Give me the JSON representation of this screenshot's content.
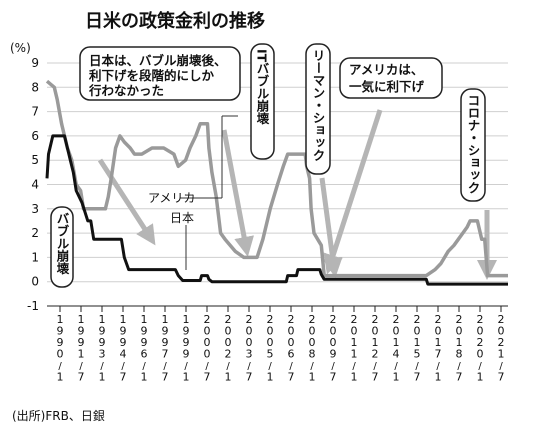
{
  "chart_data": {
    "type": "line",
    "title": "日米の政策金利の推移",
    "ylabel": "(%)",
    "ylim": [
      -1,
      9
    ],
    "yticks": [
      -1,
      0,
      1,
      2,
      3,
      4,
      5,
      6,
      7,
      8,
      9
    ],
    "grid": true,
    "xlim": [
      1990.0,
      2021.6
    ],
    "xtick_labels": [
      {
        "x": 1990.5,
        "label": "1990/1"
      },
      {
        "x": 1992.0,
        "label": "1991/7"
      },
      {
        "x": 1993.5,
        "label": "1993/1"
      },
      {
        "x": 1995.0,
        "label": "1994/7"
      },
      {
        "x": 1996.5,
        "label": "1996/1"
      },
      {
        "x": 1998.0,
        "label": "1997/7"
      },
      {
        "x": 1999.5,
        "label": "1999/1"
      },
      {
        "x": 2001.0,
        "label": "2000/7"
      },
      {
        "x": 2002.5,
        "label": "2002/1"
      },
      {
        "x": 2004.0,
        "label": "2003/7"
      },
      {
        "x": 2005.5,
        "label": "2005/1"
      },
      {
        "x": 2007.0,
        "label": "2006/7"
      },
      {
        "x": 2008.5,
        "label": "2008/1"
      },
      {
        "x": 2010.0,
        "label": "2009/7"
      },
      {
        "x": 2011.5,
        "label": "2011/1"
      },
      {
        "x": 2013.0,
        "label": "2012/7"
      },
      {
        "x": 2014.5,
        "label": "2014/1"
      },
      {
        "x": 2016.0,
        "label": "2015/7"
      },
      {
        "x": 2017.5,
        "label": "2017/1"
      },
      {
        "x": 2019.0,
        "label": "2018/7"
      },
      {
        "x": 2020.5,
        "label": "2020/1"
      },
      {
        "x": 2022.0,
        "label": "2021/7"
      }
    ],
    "series": [
      {
        "name": "アメリカ",
        "color": "#9a9a9a",
        "points": [
          [
            1990.0,
            8.25
          ],
          [
            1990.5,
            8.0
          ],
          [
            1990.7,
            7.5
          ],
          [
            1991.0,
            6.5
          ],
          [
            1991.2,
            6.0
          ],
          [
            1991.4,
            5.5
          ],
          [
            1991.7,
            5.0
          ],
          [
            1992.0,
            4.0
          ],
          [
            1992.3,
            3.75
          ],
          [
            1992.5,
            3.0
          ],
          [
            1993.0,
            3.0
          ],
          [
            1994.0,
            3.0
          ],
          [
            1994.2,
            3.5
          ],
          [
            1994.4,
            4.25
          ],
          [
            1994.7,
            5.5
          ],
          [
            1995.0,
            6.0
          ],
          [
            1995.3,
            5.75
          ],
          [
            1995.7,
            5.5
          ],
          [
            1996.0,
            5.25
          ],
          [
            1996.5,
            5.25
          ],
          [
            1997.2,
            5.5
          ],
          [
            1998.0,
            5.5
          ],
          [
            1998.7,
            5.25
          ],
          [
            1999.0,
            4.75
          ],
          [
            1999.5,
            5.0
          ],
          [
            1999.8,
            5.5
          ],
          [
            2000.2,
            6.0
          ],
          [
            2000.5,
            6.5
          ],
          [
            2001.0,
            6.5
          ],
          [
            2001.1,
            5.5
          ],
          [
            2001.3,
            4.5
          ],
          [
            2001.6,
            3.5
          ],
          [
            2001.9,
            2.0
          ],
          [
            2002.2,
            1.75
          ],
          [
            2002.9,
            1.25
          ],
          [
            2003.5,
            1.0
          ],
          [
            2004.4,
            1.0
          ],
          [
            2004.8,
            1.75
          ],
          [
            2005.3,
            3.0
          ],
          [
            2005.8,
            4.0
          ],
          [
            2006.2,
            4.75
          ],
          [
            2006.5,
            5.25
          ],
          [
            2007.7,
            5.25
          ],
          [
            2007.8,
            4.75
          ],
          [
            2008.0,
            4.25
          ],
          [
            2008.1,
            3.0
          ],
          [
            2008.3,
            2.0
          ],
          [
            2008.8,
            1.5
          ],
          [
            2009.0,
            0.25
          ],
          [
            2016.0,
            0.25
          ],
          [
            2016.6,
            0.5
          ],
          [
            2017.0,
            0.75
          ],
          [
            2017.5,
            1.25
          ],
          [
            2017.9,
            1.5
          ],
          [
            2018.2,
            1.75
          ],
          [
            2018.5,
            2.0
          ],
          [
            2018.8,
            2.25
          ],
          [
            2019.0,
            2.5
          ],
          [
            2019.5,
            2.5
          ],
          [
            2019.8,
            1.75
          ],
          [
            2020.0,
            1.75
          ],
          [
            2020.2,
            0.25
          ],
          [
            2021.6,
            0.25
          ]
        ]
      },
      {
        "name": "日本",
        "color": "#111111",
        "points": [
          [
            1990.0,
            4.25
          ],
          [
            1990.1,
            5.25
          ],
          [
            1990.4,
            6.0
          ],
          [
            1991.2,
            6.0
          ],
          [
            1991.4,
            5.5
          ],
          [
            1991.6,
            5.0
          ],
          [
            1991.8,
            4.5
          ],
          [
            1992.0,
            3.75
          ],
          [
            1992.4,
            3.25
          ],
          [
            1992.8,
            2.5
          ],
          [
            1993.0,
            2.5
          ],
          [
            1993.2,
            1.75
          ],
          [
            1995.1,
            1.75
          ],
          [
            1995.3,
            1.0
          ],
          [
            1995.6,
            0.5
          ],
          [
            1998.8,
            0.5
          ],
          [
            1999.0,
            0.25
          ],
          [
            1999.3,
            0.05
          ],
          [
            2000.5,
            0.05
          ],
          [
            2000.6,
            0.25
          ],
          [
            2001.0,
            0.25
          ],
          [
            2001.1,
            0.1
          ],
          [
            2001.3,
            0.0
          ],
          [
            2006.4,
            0.0
          ],
          [
            2006.5,
            0.25
          ],
          [
            2007.1,
            0.25
          ],
          [
            2007.2,
            0.5
          ],
          [
            2008.7,
            0.5
          ],
          [
            2008.8,
            0.3
          ],
          [
            2009.0,
            0.1
          ],
          [
            2016.0,
            0.1
          ],
          [
            2016.1,
            -0.1
          ],
          [
            2021.6,
            -0.1
          ]
        ]
      }
    ],
    "series_labels": [
      {
        "text": "アメリカ"
      },
      {
        "text": "日本"
      }
    ],
    "annotations": [
      {
        "text": [
          "日本は、バブル崩壊後、",
          "利下げを段階的にしか",
          "行わなかった"
        ]
      },
      {
        "text": [
          "アメリカは、",
          "一気に利下げ"
        ]
      },
      {
        "text": "バブル崩壊"
      },
      {
        "text": "ITバブル崩壊"
      },
      {
        "text": "リーマン・ショック"
      },
      {
        "text": "コロナ・ショック"
      }
    ],
    "source": "(出所)FRB、日銀"
  }
}
